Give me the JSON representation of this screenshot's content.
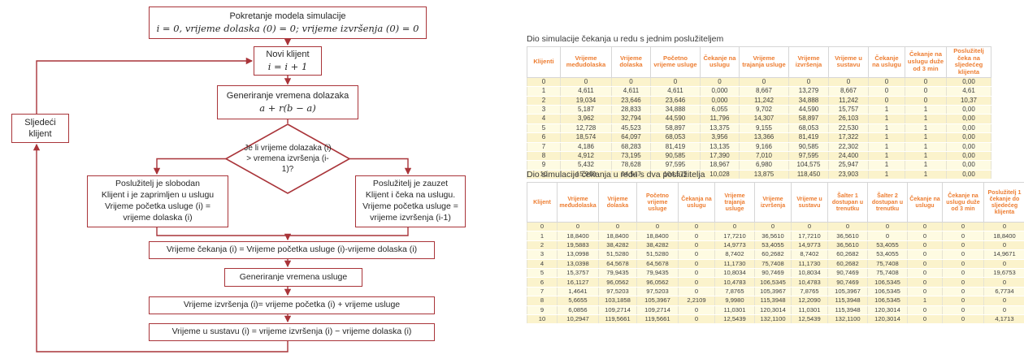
{
  "colors": {
    "flowchart_accent": "#A93439",
    "table_header_text": "#ED7D31",
    "row_yellow_dark": "#FBF3CC",
    "row_yellow_light": "#FEFBE2"
  },
  "flowchart": {
    "start": {
      "line1": "Pokretanje modela simulacije",
      "line2": "i = 0, vrijeme dolaska (0) = 0;  vrijeme izvršenja (0) = 0"
    },
    "new_client": {
      "line1": "Novi klijent",
      "line2": "i = i + 1"
    },
    "gen_arrival": {
      "line1": "Generiranje vremena dolazaka",
      "line2": "a + r(b − a)"
    },
    "decision": {
      "text": "Je li vrijeme dolazaka (i) > vremena izvršenja (i-1)?"
    },
    "server_free": {
      "line1": "Poslužitelj je slobodan",
      "line2": "Klijent i je zaprimljen u uslugu",
      "line3": "Vrijeme početka usluge (i) =",
      "line4": "vrijeme dolaska (i)"
    },
    "server_busy": {
      "line1": "Poslužitelj je zauzet",
      "line2": "Klijent i čeka na uslugu.",
      "line3": "Vrijeme početka usluge =",
      "line4": "vrijeme izvršenja (i-1)"
    },
    "wait_time": {
      "text": "Vrijeme čekanja (i) = Vrijeme početka usluge (i)-vrijeme dolaska (i)"
    },
    "gen_service": {
      "text": "Generiranje vremena usluge"
    },
    "exec_time": {
      "text": "Vrijeme izvršenja (i)= vrijeme početka (i) + vrijeme usluge"
    },
    "system_time": {
      "text": "Vrijeme u sustavu (i) = vrijeme izvršenja (i) − vrijeme dolaska (i)"
    },
    "next_client": {
      "line1": "Sljedeći",
      "line2": "klijent"
    }
  },
  "tables": {
    "single_server": {
      "title": "Dio simulacije čekanja u redu s jednim poslužiteljem",
      "headers": [
        "Klijenti",
        "Vrijeme međudolaska",
        "Vrijeme dolaska",
        "Početno vrijeme usluge",
        "Čekanje na uslugu",
        "Vrijeme trajanja usluge",
        "Vrijeme izvršenja",
        "Vrijeme u sustavu",
        "Čekanje na uslugu",
        "Čekanje na uslugu duže od 3 min",
        "Poslužitelj čeka na sljedećeg klijenta"
      ],
      "rows": [
        [
          "0",
          "0",
          "0",
          "0",
          "0",
          "0",
          "0",
          "0",
          "0",
          "0",
          "0,00"
        ],
        [
          "1",
          "4,611",
          "4,611",
          "4,611",
          "0,000",
          "8,667",
          "13,279",
          "8,667",
          "0",
          "0",
          "4,61"
        ],
        [
          "2",
          "19,034",
          "23,646",
          "23,646",
          "0,000",
          "11,242",
          "34,888",
          "11,242",
          "0",
          "0",
          "10,37"
        ],
        [
          "3",
          "5,187",
          "28,833",
          "34,888",
          "6,055",
          "9,702",
          "44,590",
          "15,757",
          "1",
          "1",
          "0,00"
        ],
        [
          "4",
          "3,962",
          "32,794",
          "44,590",
          "11,796",
          "14,307",
          "58,897",
          "26,103",
          "1",
          "1",
          "0,00"
        ],
        [
          "5",
          "12,728",
          "45,523",
          "58,897",
          "13,375",
          "9,155",
          "68,053",
          "22,530",
          "1",
          "1",
          "0,00"
        ],
        [
          "6",
          "18,574",
          "64,097",
          "68,053",
          "3,956",
          "13,366",
          "81,419",
          "17,322",
          "1",
          "1",
          "0,00"
        ],
        [
          "7",
          "4,186",
          "68,283",
          "81,419",
          "13,135",
          "9,166",
          "90,585",
          "22,302",
          "1",
          "1",
          "0,00"
        ],
        [
          "8",
          "4,912",
          "73,195",
          "90,585",
          "17,390",
          "7,010",
          "97,595",
          "24,400",
          "1",
          "1",
          "0,00"
        ],
        [
          "9",
          "5,432",
          "78,628",
          "97,595",
          "18,967",
          "6,980",
          "104,575",
          "25,947",
          "1",
          "1",
          "0,00"
        ],
        [
          "10",
          "15,919",
          "94,547",
          "104,575",
          "10,028",
          "13,875",
          "118,450",
          "23,903",
          "1",
          "1",
          "0,00"
        ]
      ]
    },
    "two_servers": {
      "title": "Dio simulacije čekanja u redu s dva poslužitelja",
      "headers": [
        "Klijent",
        "Vrijeme međudolaska",
        "Vrijeme dolaska",
        "Početno vrijeme usluge",
        "Čekanja na uslugu",
        "Vrijeme trajanja usluge",
        "Vrijeme izvršenja",
        "Vrijeme u sustavu",
        "Šalter 1 dostupan u trenutku",
        "Šalter 2 dostupan u trenutku",
        "Čekanje na uslugu",
        "Čekanje na uslugu duže od 3 min",
        "Poslužitelj 1 čekanje do sljedećeg klijenta",
        "Poslužitelj 2 čekanje do sljedećeg klijenta"
      ],
      "rows": [
        [
          "0",
          "0",
          "0",
          "0",
          "0",
          "0",
          "0",
          "0",
          "0",
          "0",
          "0",
          "0",
          "0",
          "0"
        ],
        [
          "1",
          "18,8400",
          "18,8400",
          "18,8400",
          "0",
          "17,7210",
          "36,5610",
          "17,7210",
          "36,5610",
          "0",
          "0",
          "0",
          "18,8400",
          "0"
        ],
        [
          "2",
          "19,5883",
          "38,4282",
          "38,4282",
          "0",
          "14,9773",
          "53,4055",
          "14,9773",
          "36,5610",
          "53,4055",
          "0",
          "0",
          "0",
          "38,4282"
        ],
        [
          "3",
          "13,0998",
          "51,5280",
          "51,5280",
          "0",
          "8,7402",
          "60,2682",
          "8,7402",
          "60,2682",
          "53,4055",
          "0",
          "0",
          "14,9671",
          "0"
        ],
        [
          "4",
          "13,0398",
          "64,5678",
          "64,5678",
          "0",
          "11,1730",
          "75,7408",
          "11,1730",
          "60,2682",
          "75,7408",
          "0",
          "0",
          "0",
          "11,1623"
        ],
        [
          "5",
          "15,3757",
          "79,9435",
          "79,9435",
          "0",
          "10,8034",
          "90,7469",
          "10,8034",
          "90,7469",
          "75,7408",
          "0",
          "0",
          "19,6753",
          "0"
        ],
        [
          "6",
          "16,1127",
          "96,0562",
          "96,0562",
          "0",
          "10,4783",
          "106,5345",
          "10,4783",
          "90,7469",
          "106,5345",
          "0",
          "0",
          "0",
          "20,3154"
        ],
        [
          "7",
          "1,4641",
          "97,5203",
          "97,5203",
          "0",
          "7,8765",
          "105,3967",
          "7,8765",
          "105,3967",
          "106,5345",
          "0",
          "0",
          "6,7734",
          "0"
        ],
        [
          "8",
          "5,6655",
          "103,1858",
          "105,3967",
          "2,2109",
          "9,9980",
          "115,3948",
          "12,2090",
          "115,3948",
          "106,5345",
          "1",
          "0",
          "0",
          "0"
        ],
        [
          "9",
          "6,0856",
          "109,2714",
          "109,2714",
          "0",
          "11,0301",
          "120,3014",
          "11,0301",
          "115,3948",
          "120,3014",
          "0",
          "0",
          "0",
          "2,7369"
        ],
        [
          "10",
          "10,2947",
          "119,5661",
          "119,5661",
          "0",
          "12,5439",
          "132,1100",
          "12,5439",
          "132,1100",
          "120,3014",
          "0",
          "0",
          "4,1713",
          "0"
        ]
      ]
    }
  }
}
